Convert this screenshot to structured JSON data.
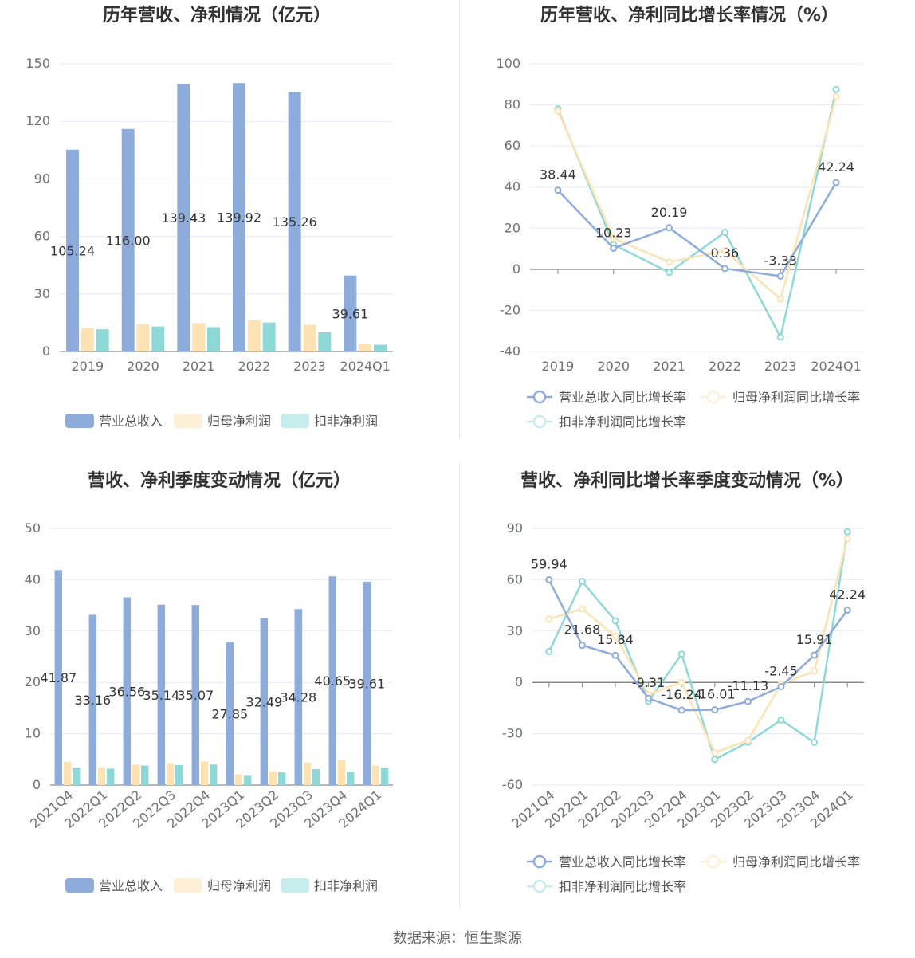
{
  "source_text": "数据来源：恒生聚源",
  "colors": {
    "revenue": "#8eacdb",
    "parent_profit": "#fde3b3",
    "deducted_profit": "#8fd8d8"
  },
  "chart_data": [
    {
      "type": "bar",
      "title": "历年营收、净利情况（亿元）",
      "categories": [
        "2019",
        "2020",
        "2021",
        "2022",
        "2023",
        "2024Q1"
      ],
      "ylim": [
        0,
        150
      ],
      "yticks": [
        0,
        30,
        60,
        90,
        120,
        150
      ],
      "series": [
        {
          "name": "营业总收入",
          "values": [
            105.24,
            116.0,
            139.43,
            139.92,
            135.26,
            39.61
          ],
          "labels": [
            "105.24",
            "116.00",
            "139.43",
            "139.92",
            "135.26",
            "39.61"
          ]
        },
        {
          "name": "归母净利润",
          "values": [
            12.3,
            14.2,
            14.8,
            16.4,
            14.0,
            3.8
          ]
        },
        {
          "name": "扣非净利润",
          "values": [
            11.6,
            13.0,
            12.7,
            15.1,
            10.0,
            3.5
          ]
        }
      ],
      "legend": "bottom"
    },
    {
      "type": "line",
      "title": "历年营收、净利同比增长率情况（%）",
      "categories": [
        "2019",
        "2020",
        "2021",
        "2022",
        "2023",
        "2024Q1"
      ],
      "ylim": [
        -40,
        100
      ],
      "yticks": [
        -40,
        -20,
        0,
        20,
        40,
        60,
        80,
        100
      ],
      "series": [
        {
          "name": "营业总收入同比增长率",
          "values": [
            38.44,
            10.23,
            20.19,
            0.36,
            -3.33,
            42.24
          ],
          "labels": [
            "38.44",
            "10.23",
            "20.19",
            "0.36",
            "-3.33",
            "42.24"
          ]
        },
        {
          "name": "归母净利润同比增长率",
          "values": [
            77,
            15,
            3.5,
            9,
            -14.5,
            84
          ]
        },
        {
          "name": "扣非净利润同比增长率",
          "values": [
            78,
            12,
            -1.5,
            18,
            -33,
            87.5
          ]
        }
      ],
      "legend": "bottom"
    },
    {
      "type": "bar",
      "title": "营收、净利季度变动情况（亿元）",
      "categories": [
        "2021Q4",
        "2022Q1",
        "2022Q2",
        "2022Q3",
        "2022Q4",
        "2023Q1",
        "2023Q2",
        "2023Q3",
        "2023Q4",
        "2024Q1"
      ],
      "ylim": [
        0,
        50
      ],
      "yticks": [
        0,
        10,
        20,
        30,
        40,
        50
      ],
      "series": [
        {
          "name": "营业总收入",
          "values": [
            41.87,
            33.16,
            36.56,
            35.14,
            35.07,
            27.85,
            32.49,
            34.28,
            40.65,
            39.61
          ],
          "labels": [
            "41.87",
            "33.16",
            "36.56",
            "35.14",
            "35.07",
            "27.85",
            "32.49",
            "34.28",
            "40.65",
            "39.61"
          ]
        },
        {
          "name": "归母净利润",
          "values": [
            4.5,
            3.5,
            4.0,
            4.3,
            4.6,
            2.1,
            2.7,
            4.4,
            4.9,
            3.8
          ]
        },
        {
          "name": "扣非净利润",
          "values": [
            3.4,
            3.2,
            3.8,
            3.9,
            4.0,
            1.8,
            2.5,
            3.1,
            2.6,
            3.4
          ]
        }
      ],
      "legend": "bottom"
    },
    {
      "type": "line",
      "title": "营收、净利同比增长率季度变动情况（%）",
      "categories": [
        "2021Q4",
        "2022Q1",
        "2022Q2",
        "2022Q3",
        "2022Q4",
        "2023Q1",
        "2023Q2",
        "2023Q3",
        "2023Q4",
        "2024Q1"
      ],
      "ylim": [
        -60,
        90
      ],
      "yticks": [
        -60,
        -30,
        0,
        30,
        60,
        90
      ],
      "series": [
        {
          "name": "营业总收入同比增长率",
          "values": [
            59.94,
            21.68,
            15.84,
            -9.31,
            -16.24,
            -16.01,
            -11.13,
            -2.45,
            15.91,
            42.24
          ],
          "labels": [
            "59.94",
            "21.68",
            "15.84",
            "-9.31",
            "-16.24",
            "-16.01",
            "-11.13",
            "-2.45",
            "15.91",
            "42.24"
          ]
        },
        {
          "name": "归母净利润同比增长率",
          "values": [
            37,
            43,
            27,
            -7,
            0,
            -41,
            -34,
            -1,
            6.5,
            84
          ]
        },
        {
          "name": "扣非净利润同比增长率",
          "values": [
            18,
            59,
            36,
            -11,
            16.5,
            -45,
            -35,
            -22,
            -35,
            88
          ]
        }
      ],
      "legend": "bottom"
    }
  ]
}
